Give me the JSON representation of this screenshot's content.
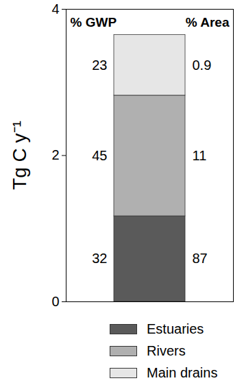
{
  "chart_data": {
    "type": "bar",
    "stacked": true,
    "categories": [
      null
    ],
    "y_label": "Tg C y⁻¹",
    "ylim": [
      0,
      4
    ],
    "yticks": [
      0,
      2,
      4
    ],
    "tick_labels": "y",
    "legend": "bottom",
    "series": [
      {
        "name": "Estuaries",
        "color": "#5a5a5a",
        "values": [
          1.17
        ]
      },
      {
        "name": "Rivers",
        "color": "#b0b0b0",
        "values": [
          1.65
        ]
      },
      {
        "name": "Main drains",
        "color": "#e6e6e6",
        "values": [
          0.83
        ]
      }
    ],
    "columns": [
      {
        "label": "% GWP",
        "values": [
          32,
          45,
          23
        ]
      },
      {
        "label": "% Area",
        "values": [
          87,
          11,
          0.9
        ]
      }
    ]
  }
}
